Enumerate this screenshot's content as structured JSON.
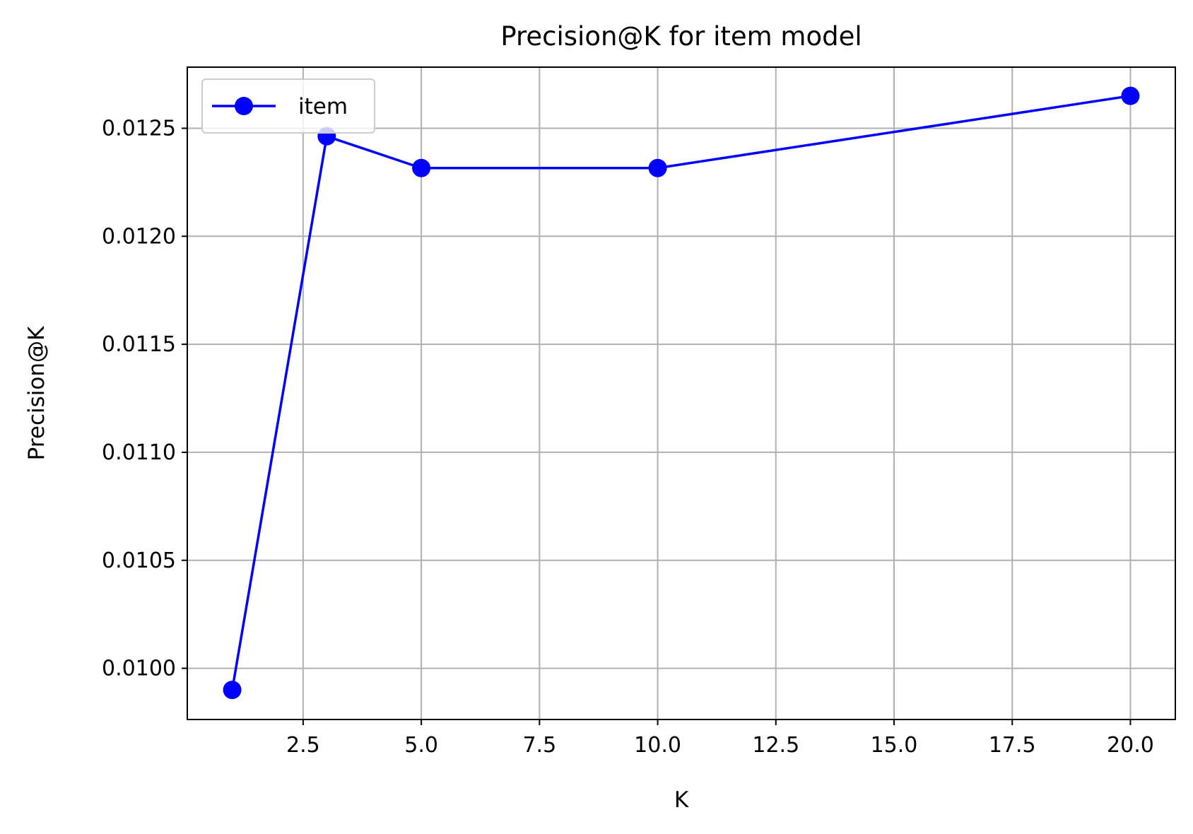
{
  "chart_data": {
    "type": "line",
    "title": "Precision@K for item model",
    "xlabel": "K",
    "ylabel": "Precision@K",
    "x": [
      1,
      3,
      5,
      10,
      20
    ],
    "series": [
      {
        "name": "item",
        "color": "#0000ff",
        "marker": "circle",
        "values": [
          0.0099,
          0.012463,
          0.012316,
          0.012316,
          0.01265
        ]
      }
    ],
    "xlim": [
      0.05,
      20.95
    ],
    "ylim": [
      0.009763,
      0.012783
    ],
    "xticks": [
      2.5,
      5.0,
      7.5,
      10.0,
      12.5,
      15.0,
      17.5,
      20.0
    ],
    "xtick_labels": [
      "2.5",
      "5.0",
      "7.5",
      "10.0",
      "12.5",
      "15.0",
      "17.5",
      "20.0"
    ],
    "yticks": [
      0.01,
      0.0105,
      0.011,
      0.0115,
      0.012,
      0.0125
    ],
    "ytick_labels": [
      "0.0100",
      "0.0105",
      "0.0110",
      "0.0115",
      "0.0120",
      "0.0125"
    ],
    "grid": true,
    "legend": {
      "position": "upper-left",
      "entries": [
        "item"
      ]
    },
    "colors": {
      "axis": "#000000",
      "grid": "#b0b0b0",
      "legend_border": "#cccccc"
    }
  }
}
